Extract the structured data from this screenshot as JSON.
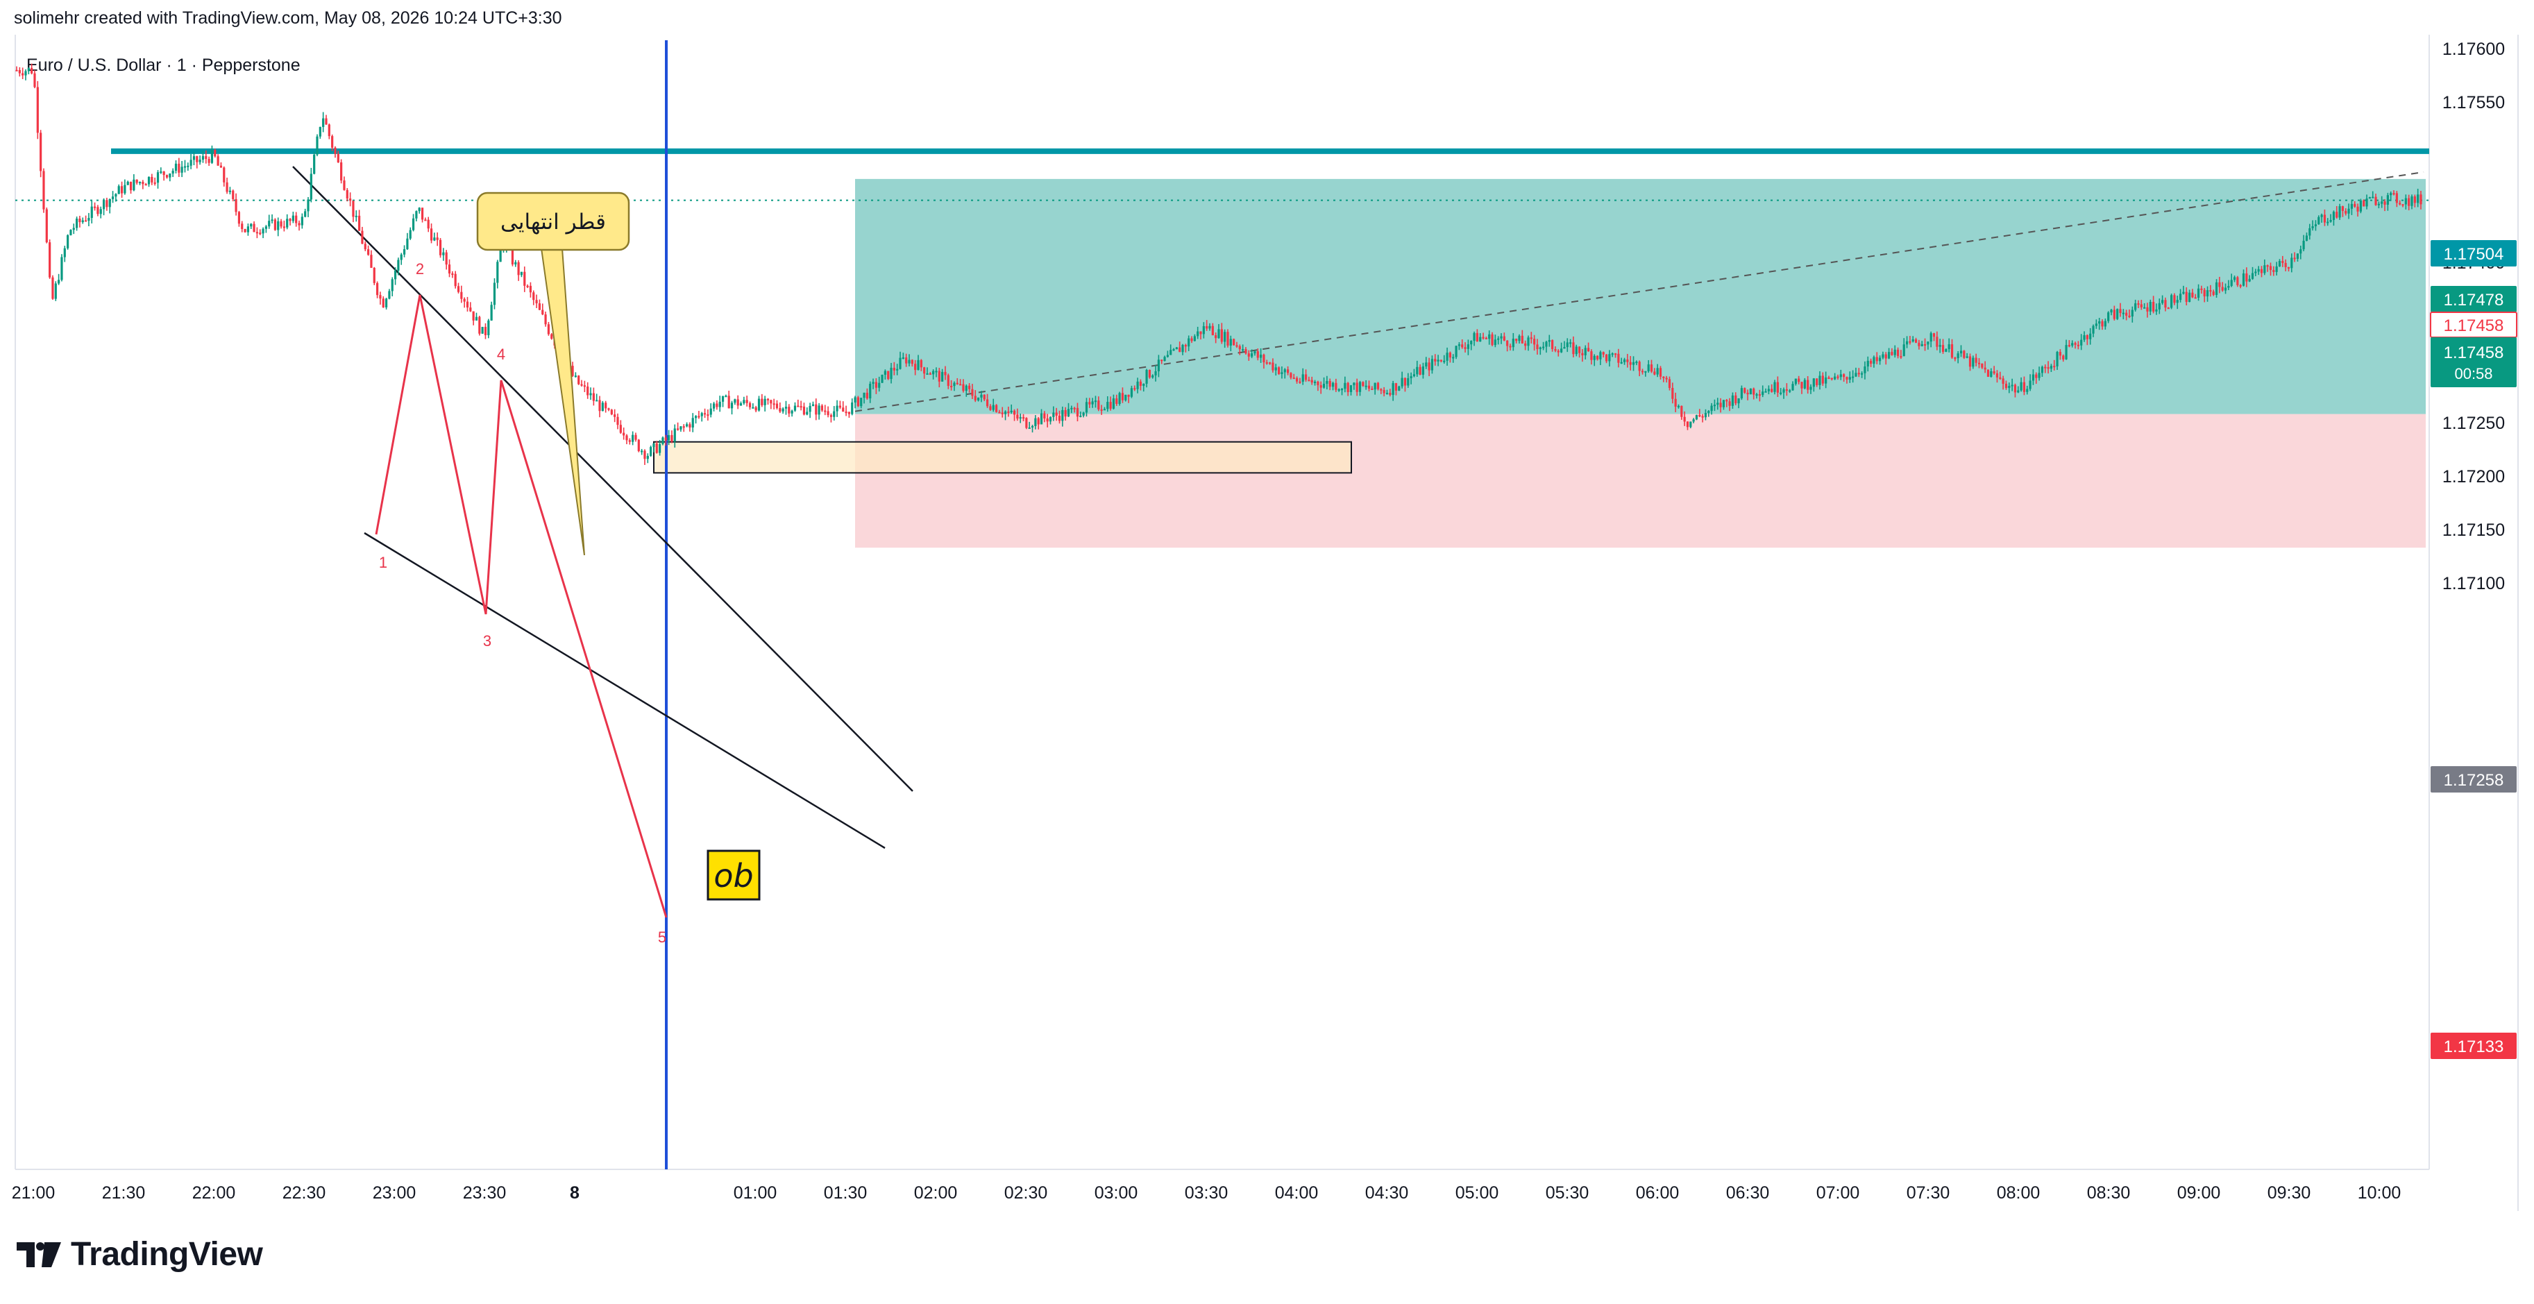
{
  "header": {
    "created_by": "solimehr created with TradingView.com, May 08, 2026 10:24 UTC+3:30"
  },
  "symbol": {
    "title": "Euro / U.S. Dollar · 1 · Pepperstone"
  },
  "brand": {
    "name": "TradingView",
    "icon": "tradingview-logo-icon"
  },
  "colors": {
    "up": "#089981",
    "down": "#f23645",
    "resistance": "#0097a7",
    "vline": "#1e4fd8",
    "profit_zone": "#80cbc4",
    "loss_zone": "#f8c8cc",
    "ob_zone": "#fde9c3",
    "callout": "#ffe98a",
    "wave": "#e8334a",
    "trendline": "#131722",
    "target_badge": "#089981",
    "stop_badge": "#f23645",
    "entry_badge": "#787b86"
  },
  "annotations": {
    "callout_text": "قطر انتهایی",
    "ob_label": "ob",
    "wave_labels": [
      "1",
      "2",
      "3",
      "4",
      "5"
    ]
  },
  "chart_data": {
    "type": "candlestick",
    "instrument": "Euro / U.S. Dollar",
    "interval": "1",
    "ylim": [
      1.1708,
      1.1762
    ],
    "yticks": [
      "1.17600",
      "1.17550",
      "1.17400",
      "1.17350",
      "1.17300",
      "1.17250",
      "1.17200",
      "1.17150",
      "1.17100"
    ],
    "xticks": [
      "21:00",
      "21:30",
      "22:00",
      "22:30",
      "23:00",
      "23:30",
      "8",
      "01:00",
      "01:30",
      "02:00",
      "02:30",
      "03:00",
      "03:30",
      "04:00",
      "04:30",
      "05:00",
      "05:30",
      "06:00",
      "06:30",
      "07:00",
      "07:30",
      "08:00",
      "08:30",
      "09:00",
      "09:30",
      "10:00"
    ],
    "price_path": [
      {
        "t": "21:00",
        "p": 1.1758
      },
      {
        "t": "21:06",
        "p": 1.1736
      },
      {
        "t": "21:12",
        "p": 1.1743
      },
      {
        "t": "21:30",
        "p": 1.1747
      },
      {
        "t": "22:00",
        "p": 1.175
      },
      {
        "t": "22:10",
        "p": 1.1743
      },
      {
        "t": "22:30",
        "p": 1.1744
      },
      {
        "t": "22:36",
        "p": 1.1754
      },
      {
        "t": "22:56",
        "p": 1.1736
      },
      {
        "t": "23:08",
        "p": 1.1745
      },
      {
        "t": "23:30",
        "p": 1.1733
      },
      {
        "t": "23:36",
        "p": 1.1742
      },
      {
        "t": "00:00",
        "p": 1.1729
      },
      {
        "t": "00:24",
        "p": 1.1722
      },
      {
        "t": "00:48",
        "p": 1.1727
      },
      {
        "t": "01:30",
        "p": 1.1726
      },
      {
        "t": "01:50",
        "p": 1.1731
      },
      {
        "t": "02:30",
        "p": 1.1725
      },
      {
        "t": "03:00",
        "p": 1.1727
      },
      {
        "t": "03:30",
        "p": 1.1734
      },
      {
        "t": "04:00",
        "p": 1.1729
      },
      {
        "t": "04:30",
        "p": 1.1728
      },
      {
        "t": "05:00",
        "p": 1.1733
      },
      {
        "t": "05:30",
        "p": 1.1732
      },
      {
        "t": "06:00",
        "p": 1.173
      },
      {
        "t": "06:10",
        "p": 1.1725
      },
      {
        "t": "06:30",
        "p": 1.1728
      },
      {
        "t": "07:00",
        "p": 1.1729
      },
      {
        "t": "07:30",
        "p": 1.1733
      },
      {
        "t": "08:00",
        "p": 1.1728
      },
      {
        "t": "08:30",
        "p": 1.1735
      },
      {
        "t": "09:00",
        "p": 1.1737
      },
      {
        "t": "09:30",
        "p": 1.174
      },
      {
        "t": "09:40",
        "p": 1.1744
      },
      {
        "t": "10:00",
        "p": 1.1746
      },
      {
        "t": "10:10",
        "p": 1.17458
      }
    ],
    "levels": {
      "resistance": "1.17504",
      "target": "1.17478",
      "last_price": "1.17458",
      "countdown": "00:58",
      "entry": "1.17258",
      "stop": "1.17133"
    },
    "position": {
      "side": "long",
      "entry": 1.17258,
      "target": 1.17478,
      "stop": 1.17133
    },
    "order_block": {
      "top": 1.17232,
      "bottom": 1.17203
    },
    "grid": false
  }
}
